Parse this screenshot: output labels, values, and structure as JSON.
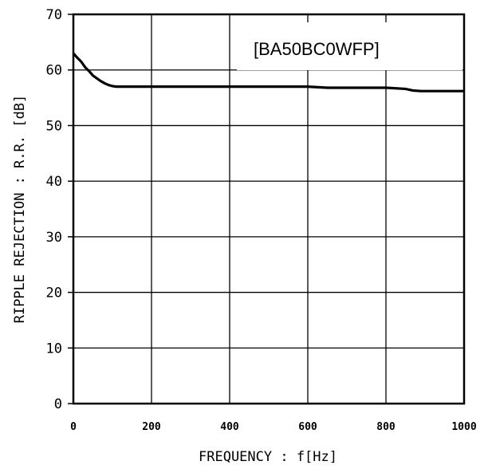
{
  "chart_data": {
    "type": "line",
    "xlabel": "FREQUENCY : f[Hz]",
    "ylabel": "RIPPLE REJECTION : R.R. [dB]",
    "annotation": "[BA50BC0WFP]",
    "xlim": [
      0,
      1000
    ],
    "ylim": [
      0,
      70
    ],
    "x_ticks": [
      "0",
      "200",
      "400",
      "600",
      "800",
      "1000"
    ],
    "y_ticks": [
      "0",
      "10",
      "20",
      "30",
      "40",
      "50",
      "60",
      "70"
    ],
    "grid": true,
    "series": [
      {
        "x": [
          0,
          10,
          20,
          30,
          40,
          50,
          60,
          70,
          80,
          90,
          100,
          110,
          150,
          200,
          300,
          400,
          500,
          600,
          650,
          700,
          800,
          850,
          870,
          890,
          900,
          950,
          1000
        ],
        "y": [
          63,
          62.2,
          61.5,
          60.5,
          59.8,
          59,
          58.5,
          58,
          57.6,
          57.3,
          57.1,
          57,
          57,
          57,
          57,
          57,
          57,
          57,
          56.8,
          56.8,
          56.8,
          56.6,
          56.3,
          56.2,
          56.2,
          56.2,
          56.2
        ],
        "color": "#000000"
      }
    ]
  }
}
